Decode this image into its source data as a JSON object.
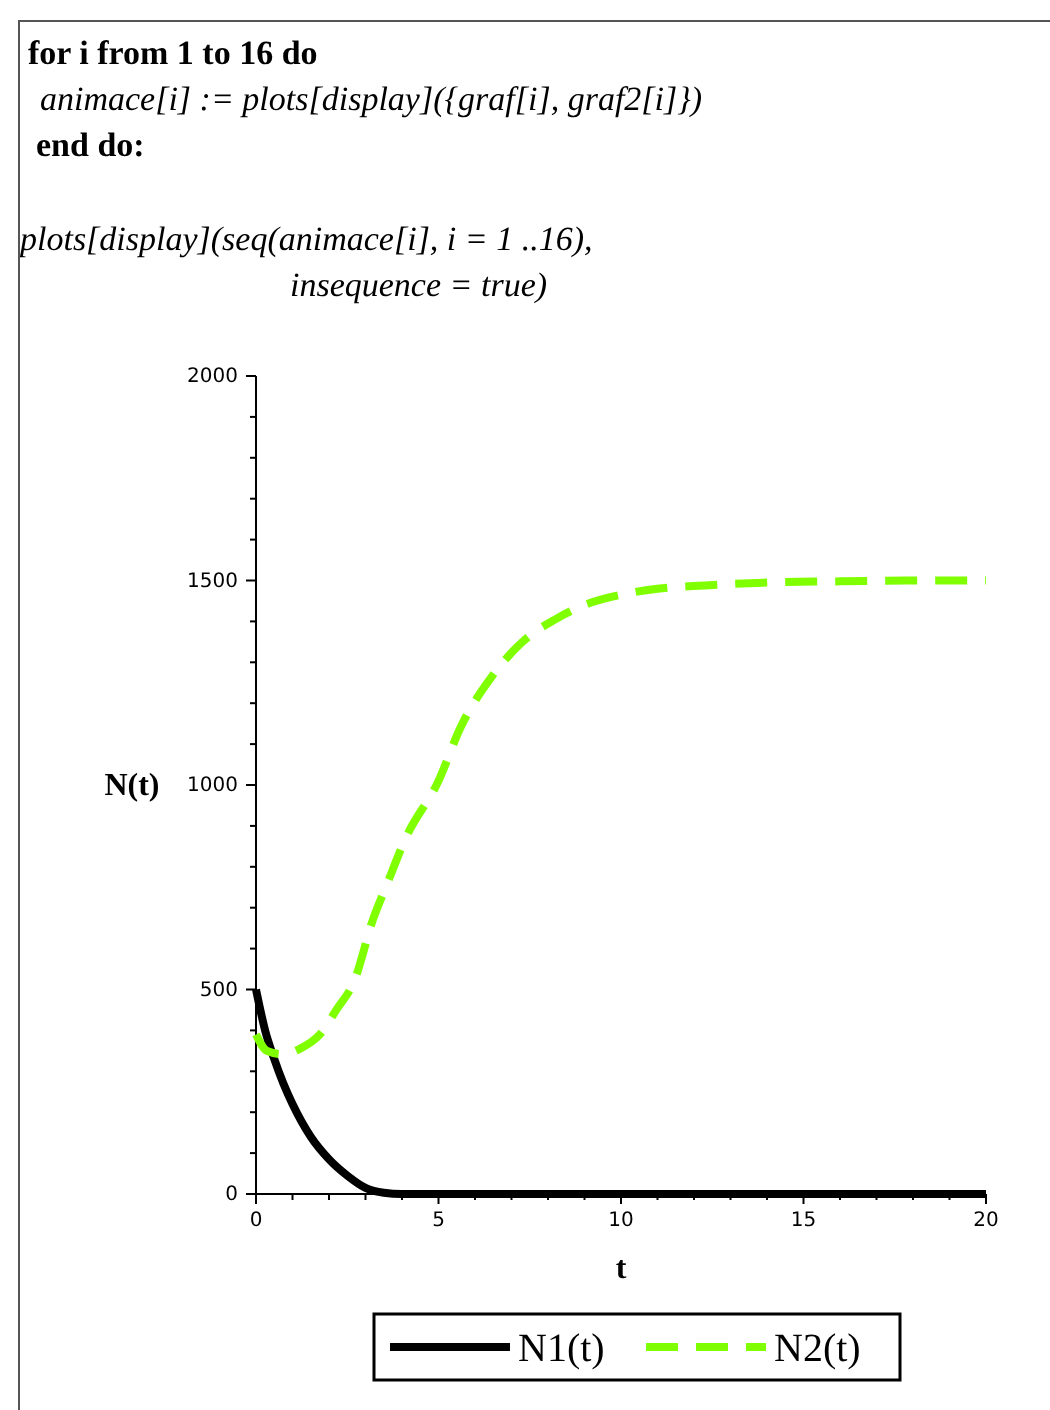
{
  "chart_data": {
    "type": "line",
    "xlabel": "t",
    "ylabel": "N(t)",
    "annotations": [
      "for i from 1 to 16 do",
      "animace[i] := plots[display]({graf[i], graf2[i]})",
      "end do:",
      "plots[display](seq(animace[i], i = 1 ..16),",
      "insequence = true)"
    ],
    "xlim": [
      0,
      20
    ],
    "ylim": [
      0,
      2000
    ],
    "xticks": [
      0,
      {
        "value": 1,
        "label": null
      },
      {
        "value": 2,
        "label": null
      },
      {
        "value": 3,
        "label": null
      },
      {
        "value": 4,
        "label": null
      },
      5,
      {
        "value": 6,
        "label": null
      },
      {
        "value": 7,
        "label": null
      },
      {
        "value": 8,
        "label": null
      },
      {
        "value": 9,
        "label": null
      },
      10,
      {
        "value": 11,
        "label": null
      },
      {
        "value": 12,
        "label": null
      },
      {
        "value": 13,
        "label": null
      },
      {
        "value": 14,
        "label": null
      },
      15,
      {
        "value": 16,
        "label": null
      },
      {
        "value": 17,
        "label": null
      },
      {
        "value": 18,
        "label": null
      },
      {
        "value": 19,
        "label": null
      },
      20
    ],
    "yticks": [
      0,
      {
        "value": 100,
        "label": null
      },
      {
        "value": 200,
        "label": null
      },
      {
        "value": 300,
        "label": null
      },
      {
        "value": 400,
        "label": null
      },
      500,
      {
        "value": 600,
        "label": null
      },
      {
        "value": 700,
        "label": null
      },
      {
        "value": 800,
        "label": null
      },
      {
        "value": 900,
        "label": null
      },
      1000,
      {
        "value": 1100,
        "label": null
      },
      {
        "value": 1200,
        "label": null
      },
      {
        "value": 1300,
        "label": null
      },
      {
        "value": 1400,
        "label": null
      },
      1500,
      {
        "value": 1600,
        "label": null
      },
      {
        "value": 1700,
        "label": null
      },
      {
        "value": 1800,
        "label": null
      },
      {
        "value": 1900,
        "label": null
      },
      2000
    ],
    "grid": false,
    "legend": "bottom",
    "series": [
      {
        "name": "N1(t)",
        "color": "#000000",
        "line_style": "solid",
        "x": [
          0,
          0.25,
          0.5,
          0.75,
          1,
          1.5,
          2,
          2.5,
          3,
          3.5,
          4,
          6,
          10,
          15,
          20
        ],
        "values": [
          500,
          400,
          330,
          270,
          220,
          140,
          85,
          45,
          15,
          3,
          0,
          0,
          0,
          0,
          0
        ]
      },
      {
        "name": "N2(t)",
        "color": "#80ff00",
        "line_style": "dashed",
        "x": [
          0,
          0.3,
          0.7,
          1.2,
          1.75,
          2.2,
          2.7,
          3.2,
          3.6,
          4.1,
          5,
          5.6,
          6.5,
          7.3,
          8.2,
          9,
          10.1,
          11,
          12.3,
          14,
          16,
          18,
          20
        ],
        "values": [
          390,
          350,
          342,
          355,
          390,
          450,
          523,
          670,
          760,
          870,
          1010,
          1140,
          1270,
          1350,
          1405,
          1440,
          1467,
          1480,
          1488,
          1495,
          1498,
          1500,
          1500
        ]
      }
    ]
  }
}
